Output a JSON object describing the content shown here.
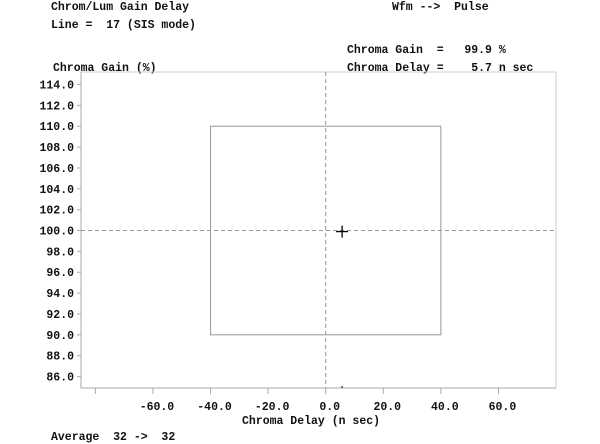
{
  "header": {
    "title": "Chrom/Lum Gain Delay",
    "line": "Line =  17 (SIS mode)",
    "wfm": "Wfm -->  Pulse",
    "gain_readout": "Chroma Gain  =   99.9 %",
    "delay_readout": "Chroma Delay =    5.7 n sec"
  },
  "footer": {
    "average": "Average  32 ->  32"
  },
  "chart_data": {
    "type": "scatter",
    "title": "",
    "xlabel": "Chroma Delay (n sec)",
    "ylabel": "Chroma Gain (%)",
    "xlim": [
      -85,
      80
    ],
    "ylim": [
      84.9,
      115.2
    ],
    "x_ticks": [
      -80,
      -60,
      -40,
      -20,
      0,
      20,
      40,
      60
    ],
    "x_tick_labels": [
      "",
      "-60.0",
      "-40.0",
      "-20.0",
      "0.0",
      "20.0",
      "40.0",
      "60.0"
    ],
    "y_ticks": [
      86,
      88,
      90,
      92,
      94,
      96,
      98,
      100,
      102,
      104,
      106,
      108,
      110,
      112,
      114
    ],
    "y_tick_labels": [
      "86.0",
      "88.0",
      "90.0",
      "92.0",
      "94.0",
      "96.0",
      "98.0",
      "100.0",
      "102.0",
      "104.0",
      "106.0",
      "108.0",
      "110.0",
      "112.0",
      "114.0"
    ],
    "reference_lines": {
      "x": 0,
      "y": 100
    },
    "limit_box": {
      "x": [
        -40,
        40
      ],
      "y": [
        90,
        110
      ]
    },
    "points": [
      {
        "x": 5.7,
        "y": 99.9
      }
    ],
    "grid": false,
    "colors": {
      "axis": "#aaaaaa",
      "box": "#999999",
      "ref": "#999999",
      "marker": "#000000"
    }
  }
}
